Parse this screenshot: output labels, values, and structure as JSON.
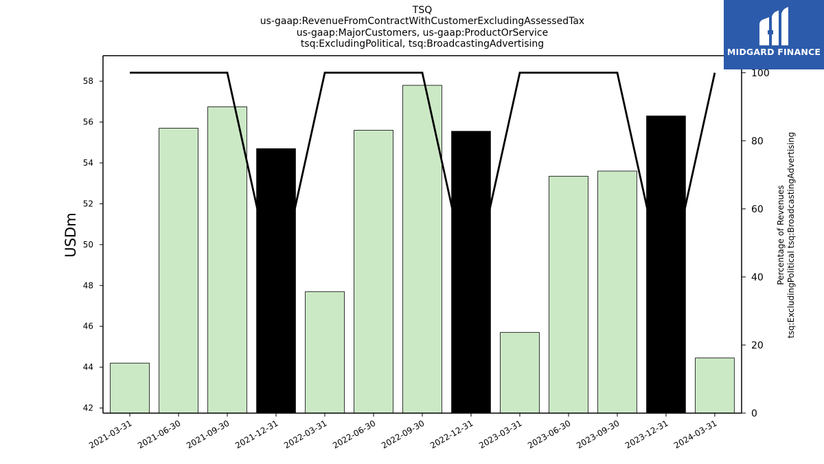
{
  "header": {
    "title_lines": [
      "TSQ",
      "us-gaap:RevenueFromContractWithCustomerExcludingAssessedTax",
      "us-gaap:MajorCustomers, us-gaap:ProductOrService",
      "tsq:ExcludingPolitical, tsq:BroadcastingAdvertising"
    ]
  },
  "logo": {
    "text": "MIDGARD FINANCE",
    "icon": "midgard-m-logo-icon",
    "background": "#2c5bab"
  },
  "chart_data": {
    "type": "bar",
    "categories": [
      "2021-03-31",
      "2021-06-30",
      "2021-09-30",
      "2021-12-31",
      "2022-03-31",
      "2022-06-30",
      "2022-09-30",
      "2022-12-31",
      "2023-03-31",
      "2023-06-30",
      "2023-09-30",
      "2023-12-31",
      "2024-03-31"
    ],
    "values": [
      44.2,
      55.7,
      56.75,
      54.7,
      47.7,
      55.6,
      57.8,
      55.55,
      45.7,
      53.35,
      53.6,
      56.3,
      44.45
    ],
    "bar_colors": [
      "#cce9c6",
      "#cce9c6",
      "#cce9c6",
      "#000000",
      "#cce9c6",
      "#cce9c6",
      "#cce9c6",
      "#000000",
      "#cce9c6",
      "#cce9c6",
      "#cce9c6",
      "#000000",
      "#cce9c6"
    ],
    "ylabel": "USDm",
    "ylim": [
      41.75,
      59.25
    ],
    "yticks": [
      42,
      44,
      46,
      48,
      50,
      52,
      54,
      56,
      58
    ],
    "secondary": {
      "type": "line",
      "values": [
        100,
        100,
        100,
        35,
        100,
        100,
        100,
        35,
        100,
        100,
        100,
        35,
        100
      ],
      "ylabel_lines": [
        "Percentage of Revenues",
        "tsq:ExcludingPolitical tsq:BroadcastingAdvertising"
      ],
      "ylim": [
        0,
        105
      ],
      "yticks": [
        0,
        20,
        40,
        60,
        80,
        100
      ],
      "color": "#000000"
    },
    "grid": false
  }
}
